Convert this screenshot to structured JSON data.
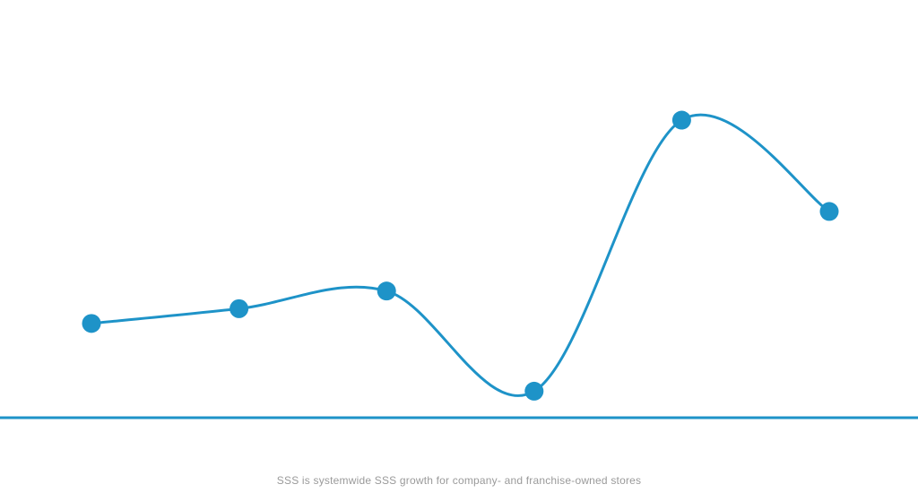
{
  "chart_data": {
    "type": "line",
    "x": [
      1,
      2,
      3,
      4,
      5,
      6
    ],
    "series": [
      {
        "values": [
          1.7,
          2.2,
          2.8,
          -0.6,
          8.6,
          5.5
        ]
      }
    ],
    "ylim": [
      -1.5,
      10
    ],
    "grid": "vertical",
    "footnote": "SSS is systemwide SSS growth for company- and franchise-owned stores",
    "colors": {
      "line": "#1e93c8",
      "grid": "#1e93c8"
    }
  }
}
